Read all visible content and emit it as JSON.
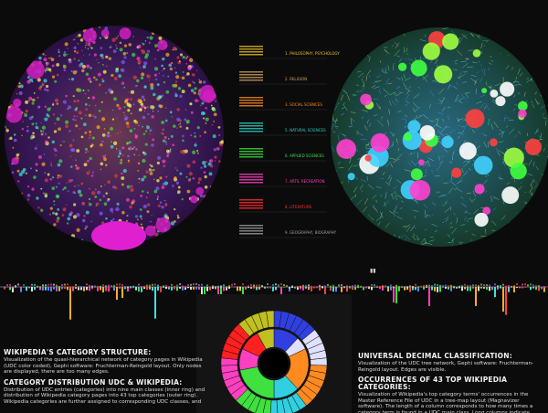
{
  "left_panel": {
    "title": "WIKIPEDIA'S CATEGORY STRUCTURE:",
    "text": "Visualization of the quasi-hierarchical network of category pages in Wikipedia (UDC color coded), Gephi software: Fruchterman-Reingold layout. Only nodes are displayed, there are too many edges."
  },
  "center_panel": {
    "title": "CATEGORY DISTRIBUTION UDC & WIKIPEDIA:",
    "text": "Distribution of UDC entries (categories) into nine main classes (inner ring) and distribution of Wikipedia category pages into 43 top categories (outer ring). Wikipedia categories are further assigned to corresponding UDC classes, and"
  },
  "right_panel": {
    "title": "UNIVERSAL DECIMAL CLASSIFICATION:",
    "text": "Visualization of the UDC tree network, Gephi software: Fruchterman-Reingold layout. Edges are visible.",
    "title2": "OCCURRENCES OF 43 TOP WIKIPEDIA CATEGORIES:",
    "text2": "Visualization of Wikipedia's top category terms' occurrences in the Master Reference File of UDC in a tree-map layout (Magnavizer software). The length of a column corresponds to how many times a category term is found in a UDC main class. Long columns indicate strong connections between a Wikipedia category and a UDC class."
  },
  "legend": [
    {
      "label": "1. PHILOSOPHY, PSYCHOLOGY",
      "color": "#e8c020"
    },
    {
      "label": "2. RELIGION",
      "color": "#d0a060"
    },
    {
      "label": "3. SOCIAL SCIENCES",
      "color": "#ff8a20"
    },
    {
      "label": "5. NATURAL SCIENCES",
      "color": "#30d0c0"
    },
    {
      "label": "6. APPLIED SCIENCES",
      "color": "#40e040"
    },
    {
      "label": "7. ARTS, RECREATION",
      "color": "#ff40c0"
    },
    {
      "label": "8. LITERATURE",
      "color": "#ff3030"
    },
    {
      "label": "9. GEOGRAPHY, BIOGRAPHY",
      "color": "#a0a0a0"
    }
  ]
}
